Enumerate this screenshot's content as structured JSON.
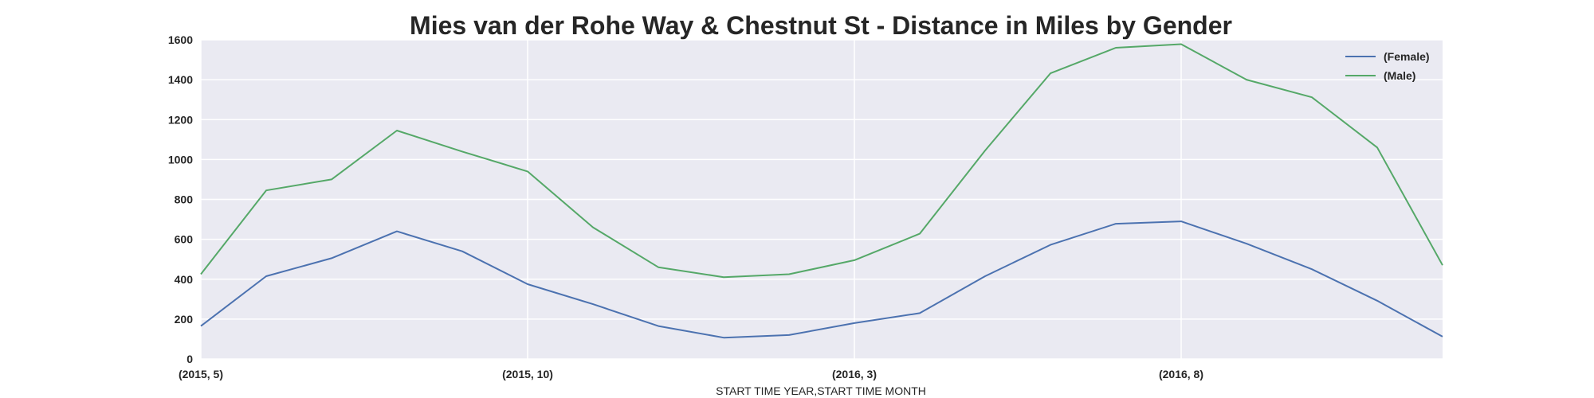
{
  "chart_data": {
    "type": "line",
    "title": "Mies van der Rohe Way & Chestnut St - Distance in Miles by Gender",
    "xlabel": "START TIME YEAR,START TIME MONTH",
    "ylabel": "",
    "ylim": [
      0,
      1600
    ],
    "yticks": [
      0,
      200,
      400,
      600,
      800,
      1000,
      1200,
      1400,
      1600
    ],
    "categories": [
      "(2015, 5)",
      "(2015, 6)",
      "(2015, 7)",
      "(2015, 8)",
      "(2015, 9)",
      "(2015, 10)",
      "(2015, 11)",
      "(2015, 12)",
      "(2016, 1)",
      "(2016, 2)",
      "(2016, 3)",
      "(2016, 4)",
      "(2016, 5)",
      "(2016, 6)",
      "(2016, 7)",
      "(2016, 8)",
      "(2016, 9)",
      "(2016, 10)",
      "(2016, 11)",
      "(2016, 12)"
    ],
    "xtick_labels": [
      {
        "index": 0,
        "label": "(2015, 5)"
      },
      {
        "index": 5,
        "label": "(2015, 10)"
      },
      {
        "index": 10,
        "label": "(2016, 3)"
      },
      {
        "index": 15,
        "label": "(2016, 8)"
      }
    ],
    "series": [
      {
        "name": "(Female)",
        "color": "#4c72b0",
        "values": [
          165,
          415,
          505,
          640,
          540,
          375,
          275,
          165,
          107,
          120,
          180,
          230,
          415,
          572,
          678,
          690,
          578,
          450,
          292,
          112
        ]
      },
      {
        "name": "(Male)",
        "color": "#55a868",
        "values": [
          425,
          845,
          900,
          1145,
          1040,
          940,
          660,
          460,
          410,
          425,
          495,
          628,
          1045,
          1432,
          1560,
          1578,
          1400,
          1312,
          1060,
          470
        ]
      }
    ],
    "grid": true,
    "legend_position": "top-right",
    "background_color": "#eaeaf2"
  }
}
